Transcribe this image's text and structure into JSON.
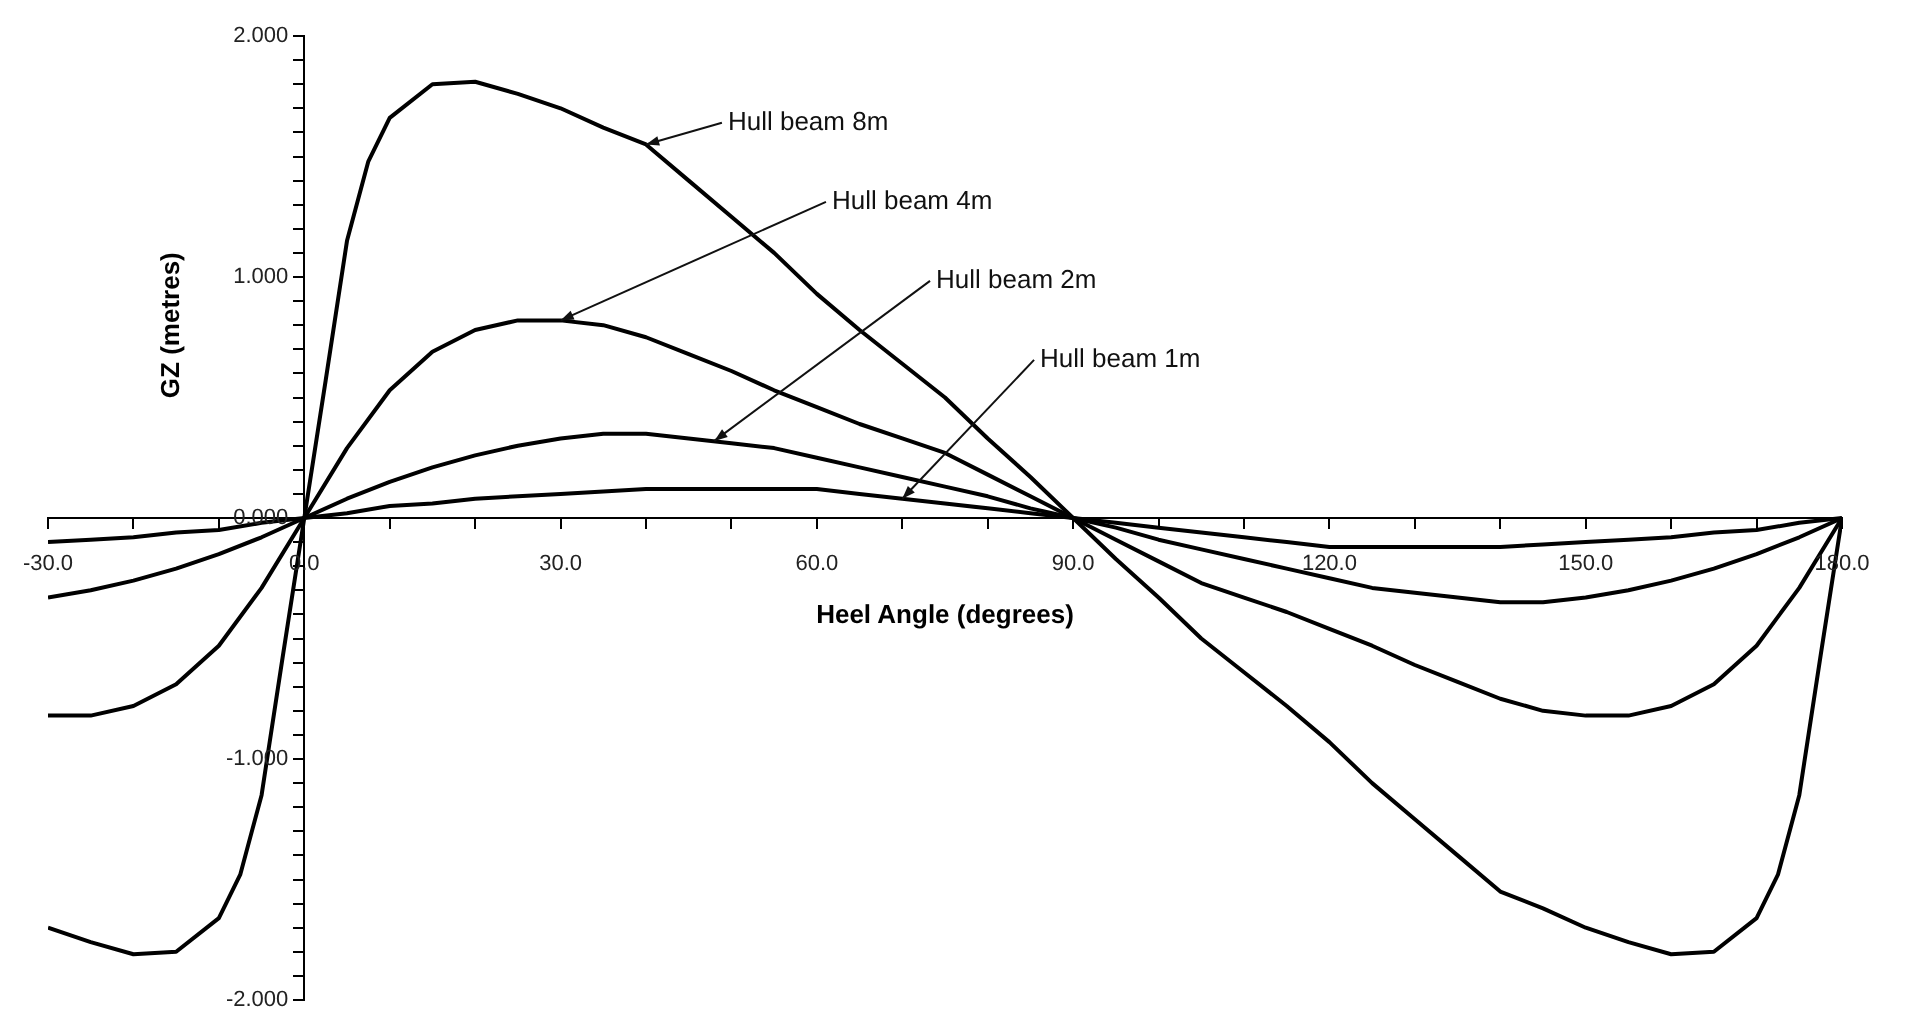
{
  "chart_data": {
    "type": "line",
    "xlabel": "Heel Angle (degrees)",
    "ylabel": "GZ (metres)",
    "x": [
      -30,
      -25,
      -20,
      -15,
      -10,
      -5,
      0,
      5,
      10,
      15,
      20,
      25,
      30,
      35,
      40,
      45,
      50,
      55,
      60,
      65,
      70,
      75,
      80,
      85,
      90,
      95,
      100,
      105,
      110,
      115,
      120,
      125,
      130,
      135,
      140,
      145,
      150,
      155,
      160,
      165,
      170,
      175,
      180
    ],
    "series": [
      {
        "color": "#000000",
        "values": [
          -0.1,
          -0.09,
          -0.08,
          -0.06,
          -0.05,
          -0.02,
          0,
          0.02,
          0.05,
          0.06,
          0.08,
          0.09,
          0.1,
          0.11,
          0.12,
          0.12,
          0.12,
          0.12,
          0.12,
          0.1,
          0.08,
          0.06,
          0.04,
          0.02,
          0,
          -0.02,
          -0.04,
          -0.06,
          -0.08,
          -0.1,
          -0.12,
          -0.12,
          -0.12,
          -0.12,
          -0.12,
          -0.11,
          -0.1,
          -0.09,
          -0.08,
          -0.06,
          -0.05,
          -0.02,
          0
        ]
      },
      {
        "color": "#000000",
        "values": [
          -0.33,
          -0.3,
          -0.26,
          -0.21,
          -0.15,
          -0.08,
          0,
          0.08,
          0.15,
          0.21,
          0.26,
          0.3,
          0.33,
          0.35,
          0.35,
          0.33,
          0.31,
          0.29,
          0.25,
          0.21,
          0.17,
          0.13,
          0.09,
          0.04,
          0,
          -0.04,
          -0.09,
          -0.13,
          -0.17,
          -0.21,
          -0.25,
          -0.29,
          -0.31,
          -0.33,
          -0.35,
          -0.35,
          -0.33,
          -0.3,
          -0.26,
          -0.21,
          -0.15,
          -0.08,
          0
        ]
      },
      {
        "color": "#000000",
        "values": [
          -0.82,
          -0.82,
          -0.78,
          -0.69,
          -0.53,
          -0.29,
          0,
          0.29,
          0.53,
          0.69,
          0.78,
          0.82,
          0.82,
          0.8,
          0.75,
          0.68,
          0.61,
          0.53,
          0.46,
          0.39,
          0.33,
          0.27,
          0.18,
          0.09,
          0,
          -0.09,
          -0.18,
          -0.27,
          -0.33,
          -0.39,
          -0.46,
          -0.53,
          -0.61,
          -0.68,
          -0.75,
          -0.8,
          -0.82,
          -0.82,
          -0.78,
          -0.69,
          -0.53,
          -0.29,
          0
        ]
      },
      {
        "color": "#000000",
        "x": [
          -30,
          -25,
          -20,
          -15,
          -10,
          -7.5,
          -5,
          -2.5,
          0,
          2.5,
          5,
          7.5,
          10,
          15,
          20,
          25,
          30,
          35,
          40,
          45,
          50,
          55,
          60,
          65,
          70,
          75,
          80,
          85,
          90,
          95,
          100,
          105,
          110,
          115,
          120,
          125,
          130,
          135,
          140,
          145,
          150,
          155,
          160,
          165,
          170,
          172.5,
          175,
          177.5,
          180
        ],
        "values": [
          -1.7,
          -1.76,
          -1.81,
          -1.8,
          -1.66,
          -1.48,
          -1.15,
          -0.57,
          0,
          0.57,
          1.15,
          1.48,
          1.66,
          1.8,
          1.81,
          1.76,
          1.7,
          1.62,
          1.55,
          1.4,
          1.25,
          1.1,
          0.93,
          0.78,
          0.64,
          0.5,
          0.33,
          0.17,
          0,
          -0.17,
          -0.33,
          -0.5,
          -0.64,
          -0.78,
          -0.93,
          -1.1,
          -1.25,
          -1.4,
          -1.55,
          -1.62,
          -1.7,
          -1.76,
          -1.81,
          -1.8,
          -1.66,
          -1.48,
          -1.15,
          -0.57,
          0
        ]
      }
    ],
    "xlim": [
      -30,
      180
    ],
    "xticks": [
      {
        "value": -30,
        "label": "-30.0"
      },
      {
        "value": -20,
        "label": null
      },
      {
        "value": -10,
        "label": null
      },
      {
        "value": 0,
        "label": "0.0"
      },
      {
        "value": 10,
        "label": null
      },
      {
        "value": 20,
        "label": null
      },
      {
        "value": 30,
        "label": "30.0"
      },
      {
        "value": 40,
        "label": null
      },
      {
        "value": 50,
        "label": null
      },
      {
        "value": 60,
        "label": "60.0"
      },
      {
        "value": 70,
        "label": null
      },
      {
        "value": 80,
        "label": null
      },
      {
        "value": 90,
        "label": "90.0"
      },
      {
        "value": 100,
        "label": null
      },
      {
        "value": 110,
        "label": null
      },
      {
        "value": 120,
        "label": "120.0"
      },
      {
        "value": 130,
        "label": null
      },
      {
        "value": 140,
        "label": null
      },
      {
        "value": 150,
        "label": "150.0"
      },
      {
        "value": 160,
        "label": null
      },
      {
        "value": 170,
        "label": null
      },
      {
        "value": 180,
        "label": "180.0"
      }
    ],
    "ylim": [
      -2,
      2
    ],
    "yticks": [
      {
        "value": -2,
        "label": "-2.000"
      },
      {
        "value": -1.9,
        "label": null
      },
      {
        "value": -1.8,
        "label": null
      },
      {
        "value": -1.7,
        "label": null
      },
      {
        "value": -1.6,
        "label": null
      },
      {
        "value": -1.5,
        "label": null
      },
      {
        "value": -1.4,
        "label": null
      },
      {
        "value": -1.3,
        "label": null
      },
      {
        "value": -1.2,
        "label": null
      },
      {
        "value": -1.1,
        "label": null
      },
      {
        "value": -1,
        "label": "-1.000"
      },
      {
        "value": -0.9,
        "label": null
      },
      {
        "value": -0.8,
        "label": null
      },
      {
        "value": -0.7,
        "label": null
      },
      {
        "value": -0.6,
        "label": null
      },
      {
        "value": -0.5,
        "label": null
      },
      {
        "value": -0.4,
        "label": null
      },
      {
        "value": -0.3,
        "label": null
      },
      {
        "value": -0.2,
        "label": null
      },
      {
        "value": -0.1,
        "label": null
      },
      {
        "value": 0,
        "label": "0.000"
      },
      {
        "value": 0.1,
        "label": null
      },
      {
        "value": 0.2,
        "label": null
      },
      {
        "value": 0.3,
        "label": null
      },
      {
        "value": 0.4,
        "label": null
      },
      {
        "value": 0.5,
        "label": null
      },
      {
        "value": 0.6,
        "label": null
      },
      {
        "value": 0.7,
        "label": null
      },
      {
        "value": 0.8,
        "label": null
      },
      {
        "value": 0.9,
        "label": null
      },
      {
        "value": 1,
        "label": "1.000"
      },
      {
        "value": 1.1,
        "label": null
      },
      {
        "value": 1.2,
        "label": null
      },
      {
        "value": 1.3,
        "label": null
      },
      {
        "value": 1.4,
        "label": null
      },
      {
        "value": 1.5,
        "label": null
      },
      {
        "value": 1.6,
        "label": null
      },
      {
        "value": 1.7,
        "label": null
      },
      {
        "value": 1.8,
        "label": null
      },
      {
        "value": 1.9,
        "label": null
      },
      {
        "value": 2,
        "label": "2.000"
      }
    ],
    "grid": false,
    "legend": false,
    "marker": "none",
    "line_style": "solid",
    "annotations": [
      {
        "text": "Hull beam 8m",
        "x": 40,
        "y": 1.55
      },
      {
        "text": "Hull beam 4m",
        "x": 30,
        "y": 0.82
      },
      {
        "text": "Hull beam 2m",
        "x": 48,
        "y": 0.32
      },
      {
        "text": "Hull beam 1m",
        "x": 70,
        "y": 0.08
      }
    ]
  }
}
